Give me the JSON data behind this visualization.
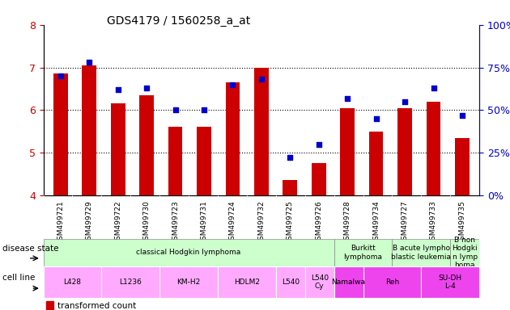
{
  "title": "GDS4179 / 1560258_a_at",
  "samples": [
    "GSM499721",
    "GSM499729",
    "GSM499722",
    "GSM499730",
    "GSM499723",
    "GSM499731",
    "GSM499724",
    "GSM499732",
    "GSM499725",
    "GSM499726",
    "GSM499728",
    "GSM499734",
    "GSM499727",
    "GSM499733",
    "GSM499735"
  ],
  "transformed_count": [
    6.85,
    7.05,
    6.15,
    6.35,
    5.6,
    5.6,
    6.65,
    7.0,
    4.35,
    4.75,
    6.05,
    5.5,
    6.05,
    6.2,
    5.35
  ],
  "percentile_rank": [
    70,
    78,
    62,
    63,
    50,
    50,
    65,
    68,
    22,
    30,
    57,
    45,
    55,
    63,
    47
  ],
  "ylim_left": [
    4.0,
    8.0
  ],
  "ylim_right": [
    0,
    100
  ],
  "bar_color": "#cc0000",
  "dot_color": "#0000cc",
  "bg_color": "#ffffff",
  "left_yticks": [
    4,
    5,
    6,
    7,
    8
  ],
  "right_yticks": [
    0,
    25,
    50,
    75,
    100
  ],
  "tick_label_color_left": "#cc0000",
  "tick_label_color_right": "#0000cc",
  "disease_state_rows": [
    {
      "label": "classical Hodgkin lymphoma",
      "start": 0,
      "end": 10,
      "color": "#ccffcc"
    },
    {
      "label": "Burkitt\nlymphoma",
      "start": 10,
      "end": 12,
      "color": "#ccffcc"
    },
    {
      "label": "B acute lympho\nblastic leukemia",
      "start": 12,
      "end": 14,
      "color": "#ccffcc"
    },
    {
      "label": "B non\nHodgki\nn lymp\nhoma",
      "start": 14,
      "end": 15,
      "color": "#ccffcc"
    }
  ],
  "cell_line_rows": [
    {
      "label": "L428",
      "start": 0,
      "end": 2,
      "color": "#ffaaff"
    },
    {
      "label": "L1236",
      "start": 2,
      "end": 4,
      "color": "#ffaaff"
    },
    {
      "label": "KM-H2",
      "start": 4,
      "end": 6,
      "color": "#ffaaff"
    },
    {
      "label": "HDLM2",
      "start": 6,
      "end": 8,
      "color": "#ffaaff"
    },
    {
      "label": "L540",
      "start": 8,
      "end": 9,
      "color": "#ffaaff"
    },
    {
      "label": "L540\nCy",
      "start": 9,
      "end": 10,
      "color": "#ffaaff"
    },
    {
      "label": "Namalwa",
      "start": 10,
      "end": 11,
      "color": "#ee44ee"
    },
    {
      "label": "Reh",
      "start": 11,
      "end": 13,
      "color": "#ee44ee"
    },
    {
      "label": "SU-DH\nL-4",
      "start": 13,
      "end": 15,
      "color": "#ee44ee"
    }
  ]
}
